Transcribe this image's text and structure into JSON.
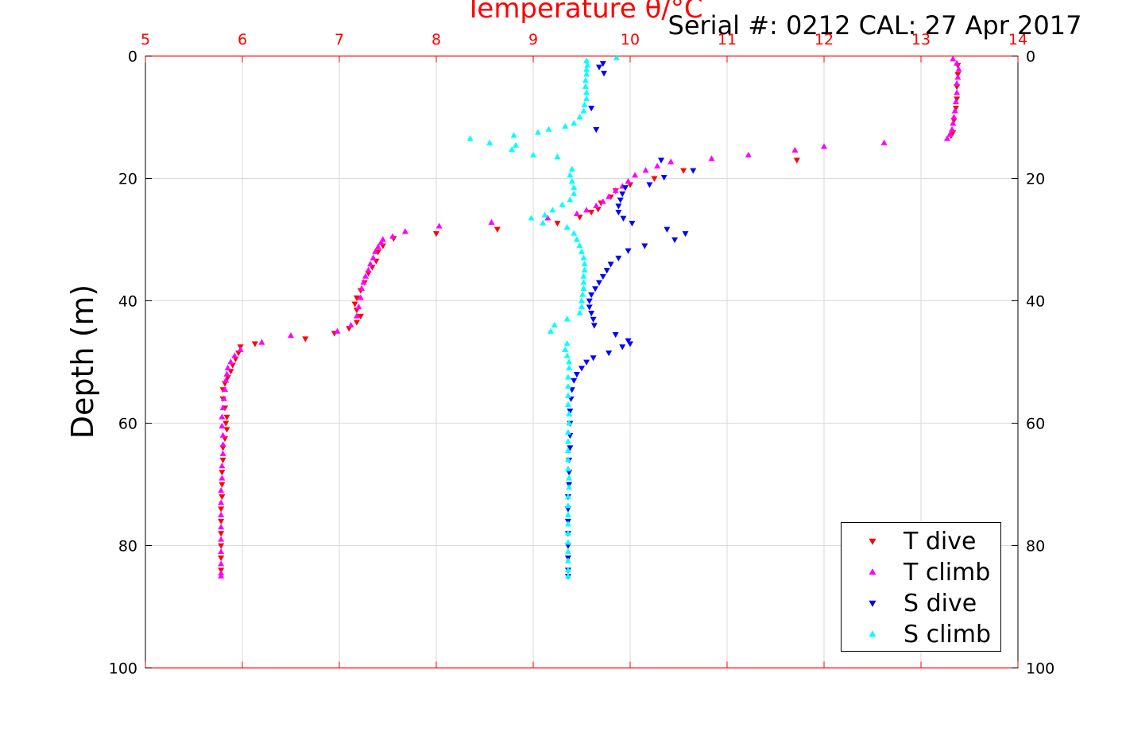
{
  "chart_data": {
    "type": "scatter",
    "title": "Temperature θ/°C",
    "subtitle": "Serial #: 0212  CAL: 27 Apr 2017",
    "xlabel": "Temperature θ/°C",
    "ylabel": "Depth (m)",
    "xlim": [
      5,
      14
    ],
    "ylim": [
      0,
      100
    ],
    "y_reversed": true,
    "x_ticks": [
      "5",
      "6",
      "7",
      "8",
      "9",
      "10",
      "11",
      "12",
      "13",
      "14"
    ],
    "y_ticks": [
      "0",
      "20",
      "40",
      "60",
      "80",
      "100"
    ],
    "grid": true,
    "legend_position": "bottom-right",
    "colors": {
      "axis_top": "#ff0000",
      "axis_other": "#000000",
      "grid": "#d9d9d9",
      "t_dive": "#ff0000",
      "t_climb": "#ff00ff",
      "s_dive": "#0000ff",
      "s_climb": "#00ffff"
    },
    "series": [
      {
        "name": "T dive",
        "marker": "triangle-down",
        "color": "#ff0000",
        "points": [
          [
            13.38,
            1.5
          ],
          [
            13.38,
            3.0
          ],
          [
            13.37,
            5.0
          ],
          [
            13.37,
            7.0
          ],
          [
            13.36,
            8.5
          ],
          [
            13.34,
            10.5
          ],
          [
            13.33,
            12.5
          ],
          [
            13.31,
            13.0
          ],
          [
            11.72,
            17.0
          ],
          [
            10.55,
            18.7
          ],
          [
            10.25,
            20.0
          ],
          [
            10.0,
            21.0
          ],
          [
            9.85,
            22.0
          ],
          [
            9.8,
            23.0
          ],
          [
            9.7,
            24.0
          ],
          [
            9.67,
            25.0
          ],
          [
            9.6,
            25.5
          ],
          [
            9.48,
            26.3
          ],
          [
            9.25,
            27.3
          ],
          [
            8.63,
            28.3
          ],
          [
            8.0,
            29.0
          ],
          [
            7.56,
            29.8
          ],
          [
            7.45,
            31.0
          ],
          [
            7.4,
            32.0
          ],
          [
            7.38,
            33.5
          ],
          [
            7.34,
            34.5
          ],
          [
            7.3,
            35.5
          ],
          [
            7.26,
            37.0
          ],
          [
            7.22,
            38.3
          ],
          [
            7.18,
            39.5
          ],
          [
            7.16,
            40.5
          ],
          [
            7.18,
            41.5
          ],
          [
            7.22,
            42.5
          ],
          [
            7.18,
            43.5
          ],
          [
            7.1,
            44.5
          ],
          [
            6.95,
            45.3
          ],
          [
            6.65,
            46.2
          ],
          [
            6.13,
            47.0
          ],
          [
            5.98,
            47.5
          ],
          [
            5.96,
            48.5
          ],
          [
            5.93,
            49.5
          ],
          [
            5.9,
            50.5
          ],
          [
            5.88,
            51.5
          ],
          [
            5.85,
            52.5
          ],
          [
            5.82,
            53.5
          ],
          [
            5.8,
            54.5
          ],
          [
            5.8,
            56.0
          ],
          [
            5.82,
            57.5
          ],
          [
            5.84,
            59.0
          ],
          [
            5.83,
            60.0
          ],
          [
            5.84,
            61.0
          ],
          [
            5.82,
            62.5
          ],
          [
            5.8,
            64.0
          ],
          [
            5.8,
            66.0
          ],
          [
            5.79,
            68.0
          ],
          [
            5.79,
            70.0
          ],
          [
            5.79,
            72.0
          ],
          [
            5.78,
            74.0
          ],
          [
            5.78,
            76.0
          ],
          [
            5.78,
            78.0
          ],
          [
            5.78,
            80.0
          ],
          [
            5.78,
            82.0
          ],
          [
            5.78,
            84.0
          ]
        ]
      },
      {
        "name": "T climb",
        "marker": "triangle-up",
        "color": "#ff00ff",
        "points": [
          [
            13.33,
            0.5
          ],
          [
            13.37,
            1.2
          ],
          [
            13.39,
            2.2
          ],
          [
            13.38,
            3.5
          ],
          [
            13.37,
            4.5
          ],
          [
            13.37,
            6.0
          ],
          [
            13.36,
            7.5
          ],
          [
            13.35,
            9.0
          ],
          [
            13.34,
            10.0
          ],
          [
            13.33,
            11.0
          ],
          [
            13.32,
            12.0
          ],
          [
            13.3,
            12.8
          ],
          [
            13.27,
            13.5
          ],
          [
            12.62,
            14.2
          ],
          [
            12.0,
            14.8
          ],
          [
            11.7,
            15.4
          ],
          [
            11.22,
            16.2
          ],
          [
            10.84,
            16.8
          ],
          [
            10.42,
            17.3
          ],
          [
            10.28,
            18.0
          ],
          [
            10.16,
            18.7
          ],
          [
            10.05,
            19.5
          ],
          [
            9.98,
            20.5
          ],
          [
            9.92,
            21.3
          ],
          [
            9.85,
            22.0
          ],
          [
            9.78,
            23.0
          ],
          [
            9.72,
            23.8
          ],
          [
            9.65,
            24.5
          ],
          [
            9.55,
            25.2
          ],
          [
            9.45,
            25.8
          ],
          [
            9.15,
            26.5
          ],
          [
            8.57,
            27.2
          ],
          [
            8.03,
            27.8
          ],
          [
            7.68,
            28.7
          ],
          [
            7.55,
            29.5
          ],
          [
            7.45,
            30.0
          ],
          [
            7.43,
            30.5
          ],
          [
            7.4,
            31.2
          ],
          [
            7.37,
            32.0
          ],
          [
            7.35,
            33.0
          ],
          [
            7.32,
            34.0
          ],
          [
            7.3,
            35.0
          ],
          [
            7.27,
            36.0
          ],
          [
            7.25,
            37.0
          ],
          [
            7.23,
            38.0
          ],
          [
            7.22,
            39.5
          ],
          [
            7.2,
            41.0
          ],
          [
            7.18,
            42.5
          ],
          [
            7.12,
            44.0
          ],
          [
            6.98,
            45.0
          ],
          [
            6.5,
            45.7
          ],
          [
            6.2,
            46.8
          ],
          [
            5.98,
            48.0
          ],
          [
            5.92,
            49.0
          ],
          [
            5.88,
            50.0
          ],
          [
            5.85,
            51.0
          ],
          [
            5.84,
            52.0
          ],
          [
            5.83,
            53.0
          ],
          [
            5.82,
            54.5
          ],
          [
            5.81,
            56.0
          ],
          [
            5.8,
            57.5
          ],
          [
            5.79,
            59.0
          ],
          [
            5.79,
            60.5
          ],
          [
            5.8,
            62.0
          ],
          [
            5.8,
            63.5
          ],
          [
            5.8,
            65.0
          ],
          [
            5.79,
            67.0
          ],
          [
            5.79,
            69.0
          ],
          [
            5.78,
            71.0
          ],
          [
            5.78,
            73.0
          ],
          [
            5.78,
            75.0
          ],
          [
            5.78,
            77.0
          ],
          [
            5.78,
            79.0
          ],
          [
            5.78,
            81.0
          ],
          [
            5.78,
            83.0
          ],
          [
            5.78,
            84.5
          ],
          [
            5.78,
            85.0
          ]
        ]
      },
      {
        "name": "S dive",
        "marker": "triangle-down",
        "color": "#0000ff",
        "points": [
          [
            9.72,
            1.2
          ],
          [
            9.68,
            1.8
          ],
          [
            9.73,
            2.8
          ],
          [
            9.6,
            8.5
          ],
          [
            9.65,
            12.0
          ],
          [
            10.32,
            17.0
          ],
          [
            10.65,
            18.7
          ],
          [
            10.35,
            19.8
          ],
          [
            10.2,
            21.0
          ],
          [
            9.95,
            21.5
          ],
          [
            9.92,
            22.5
          ],
          [
            9.9,
            23.5
          ],
          [
            9.88,
            24.5
          ],
          [
            9.88,
            25.5
          ],
          [
            9.93,
            26.5
          ],
          [
            10.02,
            27.3
          ],
          [
            10.38,
            28.3
          ],
          [
            10.57,
            29.0
          ],
          [
            10.46,
            30.0
          ],
          [
            10.15,
            31.0
          ],
          [
            9.98,
            31.8
          ],
          [
            9.88,
            33.0
          ],
          [
            9.8,
            34.0
          ],
          [
            9.76,
            35.0
          ],
          [
            9.72,
            36.0
          ],
          [
            9.68,
            37.0
          ],
          [
            9.64,
            38.0
          ],
          [
            9.6,
            39.0
          ],
          [
            9.58,
            40.0
          ],
          [
            9.58,
            41.0
          ],
          [
            9.6,
            42.0
          ],
          [
            9.62,
            43.0
          ],
          [
            9.63,
            44.0
          ],
          [
            9.85,
            45.5
          ],
          [
            9.98,
            46.5
          ],
          [
            10.0,
            47.0
          ],
          [
            9.92,
            47.5
          ],
          [
            9.78,
            48.5
          ],
          [
            9.62,
            49.3
          ],
          [
            9.55,
            50.0
          ],
          [
            9.5,
            51.0
          ],
          [
            9.45,
            52.0
          ],
          [
            9.42,
            53.0
          ],
          [
            9.4,
            54.5
          ],
          [
            9.39,
            56.0
          ],
          [
            9.38,
            58.0
          ],
          [
            9.38,
            60.0
          ],
          [
            9.38,
            62.0
          ],
          [
            9.38,
            64.0
          ],
          [
            9.37,
            66.0
          ],
          [
            9.37,
            68.0
          ],
          [
            9.37,
            70.0
          ],
          [
            9.36,
            72.0
          ],
          [
            9.36,
            74.0
          ],
          [
            9.36,
            76.0
          ],
          [
            9.36,
            78.0
          ],
          [
            9.36,
            80.0
          ],
          [
            9.36,
            82.0
          ],
          [
            9.36,
            84.0
          ],
          [
            9.36,
            85.0
          ]
        ]
      },
      {
        "name": "S climb",
        "marker": "triangle-up",
        "color": "#00ffff",
        "points": [
          [
            9.86,
            0.3
          ],
          [
            9.55,
            0.8
          ],
          [
            9.56,
            1.5
          ],
          [
            9.55,
            2.2
          ],
          [
            9.55,
            3.0
          ],
          [
            9.54,
            4.0
          ],
          [
            9.54,
            5.0
          ],
          [
            9.55,
            6.0
          ],
          [
            9.55,
            7.0
          ],
          [
            9.53,
            8.0
          ],
          [
            9.52,
            9.0
          ],
          [
            9.48,
            10.0
          ],
          [
            9.42,
            11.0
          ],
          [
            9.33,
            11.5
          ],
          [
            9.16,
            12.0
          ],
          [
            9.05,
            12.5
          ],
          [
            8.8,
            13.0
          ],
          [
            8.35,
            13.5
          ],
          [
            8.55,
            14.2
          ],
          [
            8.82,
            14.6
          ],
          [
            8.78,
            15.3
          ],
          [
            9.0,
            16.2
          ],
          [
            9.25,
            16.5
          ],
          [
            9.4,
            18.5
          ],
          [
            9.38,
            19.5
          ],
          [
            9.4,
            20.5
          ],
          [
            9.42,
            21.5
          ],
          [
            9.42,
            22.5
          ],
          [
            9.38,
            23.5
          ],
          [
            9.3,
            24.3
          ],
          [
            9.2,
            25.2
          ],
          [
            9.12,
            26.0
          ],
          [
            8.98,
            26.5
          ],
          [
            9.1,
            27.3
          ],
          [
            9.35,
            28.0
          ],
          [
            9.42,
            29.0
          ],
          [
            9.45,
            30.0
          ],
          [
            9.48,
            31.0
          ],
          [
            9.5,
            32.0
          ],
          [
            9.52,
            33.0
          ],
          [
            9.53,
            34.0
          ],
          [
            9.53,
            35.0
          ],
          [
            9.52,
            36.0
          ],
          [
            9.52,
            37.0
          ],
          [
            9.52,
            38.0
          ],
          [
            9.51,
            39.0
          ],
          [
            9.5,
            40.0
          ],
          [
            9.5,
            41.0
          ],
          [
            9.48,
            42.0
          ],
          [
            9.35,
            43.0
          ],
          [
            9.22,
            44.0
          ],
          [
            9.18,
            45.0
          ],
          [
            9.35,
            47.0
          ],
          [
            9.33,
            48.0
          ],
          [
            9.35,
            49.0
          ],
          [
            9.37,
            50.0
          ],
          [
            9.37,
            51.0
          ],
          [
            9.36,
            52.5
          ],
          [
            9.36,
            54.0
          ],
          [
            9.36,
            55.5
          ],
          [
            9.36,
            57.0
          ],
          [
            9.37,
            58.5
          ],
          [
            9.37,
            60.0
          ],
          [
            9.36,
            61.5
          ],
          [
            9.36,
            63.0
          ],
          [
            9.36,
            64.5
          ],
          [
            9.36,
            66.0
          ],
          [
            9.36,
            67.5
          ],
          [
            9.37,
            69.0
          ],
          [
            9.37,
            70.5
          ],
          [
            9.36,
            72.0
          ],
          [
            9.36,
            73.5
          ],
          [
            9.36,
            75.0
          ],
          [
            9.36,
            76.5
          ],
          [
            9.36,
            78.0
          ],
          [
            9.36,
            79.5
          ],
          [
            9.36,
            81.0
          ],
          [
            9.36,
            82.5
          ],
          [
            9.36,
            84.0
          ],
          [
            9.36,
            85.0
          ]
        ]
      }
    ]
  }
}
